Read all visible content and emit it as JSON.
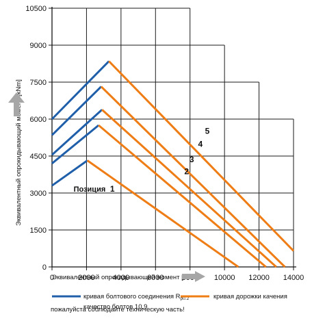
{
  "chart_data": {
    "type": "line",
    "xlabel": "Эквивалентный опрокидывающий момент [kNm]",
    "ylabel": "Эквивалентный опрокидывающий момент [kNm]",
    "xlim": [
      0,
      14000
    ],
    "ylim": [
      0,
      10500
    ],
    "xticks": [
      0,
      2000,
      4000,
      6000,
      8000,
      10000,
      12000,
      14000
    ],
    "yticks": [
      0,
      1500,
      3000,
      4500,
      6000,
      7500,
      9000,
      10500
    ],
    "position_label": "Позиция",
    "series": [
      {
        "label": "1",
        "bolt": [
          [
            0,
            3300
          ],
          [
            2050,
            4320
          ]
        ],
        "raceway": [
          [
            2050,
            4320
          ],
          [
            10800,
            0
          ]
        ]
      },
      {
        "label": "2",
        "bolt": [
          [
            0,
            4200
          ],
          [
            2700,
            5750
          ]
        ],
        "raceway": [
          [
            2700,
            5750
          ],
          [
            12400,
            0
          ]
        ]
      },
      {
        "label": "3",
        "bolt": [
          [
            0,
            4550
          ],
          [
            2900,
            6380
          ]
        ],
        "raceway": [
          [
            2900,
            6380
          ],
          [
            13000,
            0
          ]
        ]
      },
      {
        "label": "4",
        "bolt": [
          [
            0,
            5350
          ],
          [
            2850,
            7320
          ]
        ],
        "raceway": [
          [
            2850,
            7320
          ],
          [
            13500,
            0
          ]
        ]
      },
      {
        "label": "5",
        "bolt": [
          [
            0,
            6000
          ],
          [
            3300,
            8350
          ]
        ],
        "raceway": [
          [
            3300,
            8350
          ],
          [
            14000,
            650
          ]
        ]
      }
    ],
    "curve_label_positions": [
      [
        3500,
        3060
      ],
      [
        7800,
        3770
      ],
      [
        8100,
        4250
      ],
      [
        8600,
        4880
      ],
      [
        9000,
        5400
      ]
    ],
    "grid_steps": [
      [
        2000,
        10500
      ],
      [
        4000,
        10500
      ],
      [
        8000,
        10500
      ],
      [
        10000,
        9000
      ],
      [
        12000,
        7500
      ],
      [
        14000,
        6000
      ]
    ]
  },
  "legend": {
    "bolt_label": "кривая болтового соединения R",
    "bolt_sub": "p0.2",
    "bolt_line2": "качество болтов 10.9",
    "raceway_label": "кривая дорожки качения"
  },
  "note": "пожалуйста соблюдайте техническую часть!",
  "colors": {
    "bolt": "#1f5faa",
    "raceway": "#ef7d16",
    "arrow": "#a6a6a6"
  }
}
